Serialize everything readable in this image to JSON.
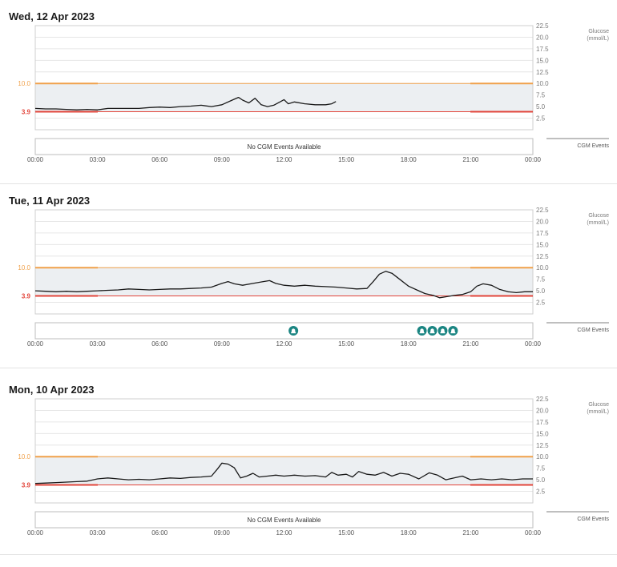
{
  "colors": {
    "target_band": "#eceff2",
    "high_line": "#f0a14a",
    "low_line": "#e2443a",
    "glucose_line": "#1a1a1a",
    "event_marker": "#1b8582",
    "grid": "#e6e6e6",
    "axis_label": "#7a7a7a"
  },
  "chart_data": [
    {
      "type": "line",
      "title": "Wed, 12 Apr 2023",
      "xlabel": "",
      "ylabel": "Glucose\n(mmol/L)",
      "ylim": [
        0,
        22.5
      ],
      "xlim": [
        0,
        24
      ],
      "y_ticks": [
        "22.5",
        "20.0",
        "17.5",
        "15.0",
        "12.5",
        "10.0",
        "7.5",
        "5.0",
        "2.5"
      ],
      "x_ticks": [
        "00:00",
        "03:00",
        "06:00",
        "09:00",
        "12:00",
        "15:00",
        "18:00",
        "21:00",
        "00:00"
      ],
      "target_range": {
        "high": 10.0,
        "low": 3.9,
        "high_label": "10.0",
        "low_label": "3.9"
      },
      "series": [
        {
          "values": [
            [
              0.0,
              4.6
            ],
            [
              0.5,
              4.5
            ],
            [
              1.0,
              4.5
            ],
            [
              1.5,
              4.4
            ],
            [
              2.0,
              4.3
            ],
            [
              2.5,
              4.4
            ],
            [
              3.0,
              4.3
            ],
            [
              3.5,
              4.6
            ],
            [
              4.0,
              4.6
            ],
            [
              4.5,
              4.6
            ],
            [
              5.0,
              4.6
            ],
            [
              5.5,
              4.8
            ],
            [
              6.0,
              4.9
            ],
            [
              6.5,
              4.8
            ],
            [
              7.0,
              5.0
            ],
            [
              7.5,
              5.1
            ],
            [
              8.0,
              5.3
            ],
            [
              8.5,
              5.0
            ],
            [
              9.0,
              5.4
            ],
            [
              9.5,
              6.4
            ],
            [
              9.8,
              7.0
            ],
            [
              10.0,
              6.4
            ],
            [
              10.3,
              5.8
            ],
            [
              10.6,
              6.8
            ],
            [
              10.9,
              5.4
            ],
            [
              11.2,
              5.0
            ],
            [
              11.5,
              5.3
            ],
            [
              11.8,
              6.0
            ],
            [
              12.0,
              6.5
            ],
            [
              12.2,
              5.6
            ],
            [
              12.5,
              6.0
            ],
            [
              13.0,
              5.6
            ],
            [
              13.5,
              5.4
            ],
            [
              14.0,
              5.4
            ],
            [
              14.3,
              5.6
            ],
            [
              14.5,
              6.1
            ]
          ]
        }
      ],
      "events": [],
      "events_text": "No CGM Events Available",
      "events_label": "CGM Events"
    },
    {
      "type": "line",
      "title": "Tue, 11 Apr 2023",
      "xlabel": "",
      "ylabel": "Glucose\n(mmol/L)",
      "ylim": [
        0,
        22.5
      ],
      "xlim": [
        0,
        24
      ],
      "y_ticks": [
        "22.5",
        "20.0",
        "17.5",
        "15.0",
        "12.5",
        "10.0",
        "7.5",
        "5.0",
        "2.5"
      ],
      "x_ticks": [
        "00:00",
        "03:00",
        "06:00",
        "09:00",
        "12:00",
        "15:00",
        "18:00",
        "21:00",
        "00:00"
      ],
      "target_range": {
        "high": 10.0,
        "low": 3.9,
        "high_label": "10.0",
        "low_label": "3.9"
      },
      "series": [
        {
          "values": [
            [
              0.0,
              5.0
            ],
            [
              0.5,
              4.9
            ],
            [
              1.0,
              4.8
            ],
            [
              1.5,
              4.9
            ],
            [
              2.0,
              4.8
            ],
            [
              2.5,
              4.9
            ],
            [
              3.0,
              5.0
            ],
            [
              3.5,
              5.1
            ],
            [
              4.0,
              5.2
            ],
            [
              4.5,
              5.4
            ],
            [
              5.0,
              5.3
            ],
            [
              5.5,
              5.2
            ],
            [
              6.0,
              5.3
            ],
            [
              6.5,
              5.4
            ],
            [
              7.0,
              5.4
            ],
            [
              7.5,
              5.5
            ],
            [
              8.0,
              5.6
            ],
            [
              8.5,
              5.8
            ],
            [
              9.0,
              6.6
            ],
            [
              9.3,
              7.0
            ],
            [
              9.6,
              6.5
            ],
            [
              10.0,
              6.2
            ],
            [
              10.5,
              6.6
            ],
            [
              11.0,
              7.0
            ],
            [
              11.3,
              7.2
            ],
            [
              11.6,
              6.6
            ],
            [
              12.0,
              6.2
            ],
            [
              12.5,
              6.0
            ],
            [
              13.0,
              6.2
            ],
            [
              13.5,
              6.0
            ],
            [
              14.0,
              5.9
            ],
            [
              14.5,
              5.8
            ],
            [
              15.0,
              5.6
            ],
            [
              15.5,
              5.4
            ],
            [
              16.0,
              5.5
            ],
            [
              16.3,
              7.0
            ],
            [
              16.6,
              8.6
            ],
            [
              16.9,
              9.2
            ],
            [
              17.2,
              8.8
            ],
            [
              17.6,
              7.4
            ],
            [
              18.0,
              6.0
            ],
            [
              18.4,
              5.2
            ],
            [
              18.8,
              4.4
            ],
            [
              19.2,
              4.0
            ],
            [
              19.5,
              3.5
            ],
            [
              19.8,
              3.7
            ],
            [
              20.2,
              4.0
            ],
            [
              20.6,
              4.2
            ],
            [
              21.0,
              4.8
            ],
            [
              21.3,
              6.0
            ],
            [
              21.6,
              6.5
            ],
            [
              22.0,
              6.2
            ],
            [
              22.4,
              5.3
            ],
            [
              22.8,
              4.8
            ],
            [
              23.2,
              4.6
            ],
            [
              23.6,
              4.8
            ],
            [
              24.0,
              4.8
            ]
          ]
        }
      ],
      "events": [
        12.45,
        18.65,
        19.15,
        19.65,
        20.15
      ],
      "events_text": "",
      "events_label": "CGM Events"
    },
    {
      "type": "line",
      "title": "Mon, 10 Apr 2023",
      "xlabel": "",
      "ylabel": "Glucose\n(mmol/L)",
      "ylim": [
        0,
        22.5
      ],
      "xlim": [
        0,
        24
      ],
      "y_ticks": [
        "22.5",
        "20.0",
        "17.5",
        "15.0",
        "12.5",
        "10.0",
        "7.5",
        "5.0",
        "2.5"
      ],
      "x_ticks": [
        "00:00",
        "03:00",
        "06:00",
        "09:00",
        "12:00",
        "15:00",
        "18:00",
        "21:00",
        "00:00"
      ],
      "target_range": {
        "high": 10.0,
        "low": 3.9,
        "high_label": "10.0",
        "low_label": "3.9"
      },
      "series": [
        {
          "values": [
            [
              0.0,
              4.2
            ],
            [
              0.5,
              4.3
            ],
            [
              1.0,
              4.4
            ],
            [
              1.5,
              4.5
            ],
            [
              2.0,
              4.6
            ],
            [
              2.5,
              4.7
            ],
            [
              3.0,
              5.2
            ],
            [
              3.5,
              5.4
            ],
            [
              4.0,
              5.2
            ],
            [
              4.5,
              5.0
            ],
            [
              5.0,
              5.1
            ],
            [
              5.5,
              5.0
            ],
            [
              6.0,
              5.2
            ],
            [
              6.5,
              5.4
            ],
            [
              7.0,
              5.3
            ],
            [
              7.5,
              5.5
            ],
            [
              8.0,
              5.6
            ],
            [
              8.5,
              5.8
            ],
            [
              8.8,
              7.4
            ],
            [
              9.0,
              8.6
            ],
            [
              9.3,
              8.4
            ],
            [
              9.6,
              7.6
            ],
            [
              9.9,
              5.4
            ],
            [
              10.2,
              5.8
            ],
            [
              10.5,
              6.4
            ],
            [
              10.8,
              5.6
            ],
            [
              11.2,
              5.8
            ],
            [
              11.6,
              6.0
            ],
            [
              12.0,
              5.8
            ],
            [
              12.5,
              6.0
            ],
            [
              13.0,
              5.8
            ],
            [
              13.5,
              5.9
            ],
            [
              14.0,
              5.6
            ],
            [
              14.3,
              6.6
            ],
            [
              14.6,
              6.0
            ],
            [
              15.0,
              6.2
            ],
            [
              15.3,
              5.6
            ],
            [
              15.6,
              6.8
            ],
            [
              16.0,
              6.2
            ],
            [
              16.4,
              6.0
            ],
            [
              16.8,
              6.6
            ],
            [
              17.2,
              5.8
            ],
            [
              17.6,
              6.4
            ],
            [
              18.0,
              6.2
            ],
            [
              18.5,
              5.2
            ],
            [
              19.0,
              6.5
            ],
            [
              19.4,
              6.0
            ],
            [
              19.8,
              5.0
            ],
            [
              20.2,
              5.4
            ],
            [
              20.6,
              5.8
            ],
            [
              21.0,
              5.0
            ],
            [
              21.5,
              5.2
            ],
            [
              22.0,
              5.0
            ],
            [
              22.5,
              5.2
            ],
            [
              23.0,
              5.0
            ],
            [
              23.5,
              5.2
            ],
            [
              24.0,
              5.2
            ]
          ]
        }
      ],
      "events": [],
      "events_text": "No CGM Events Available",
      "events_label": "CGM Events"
    }
  ]
}
